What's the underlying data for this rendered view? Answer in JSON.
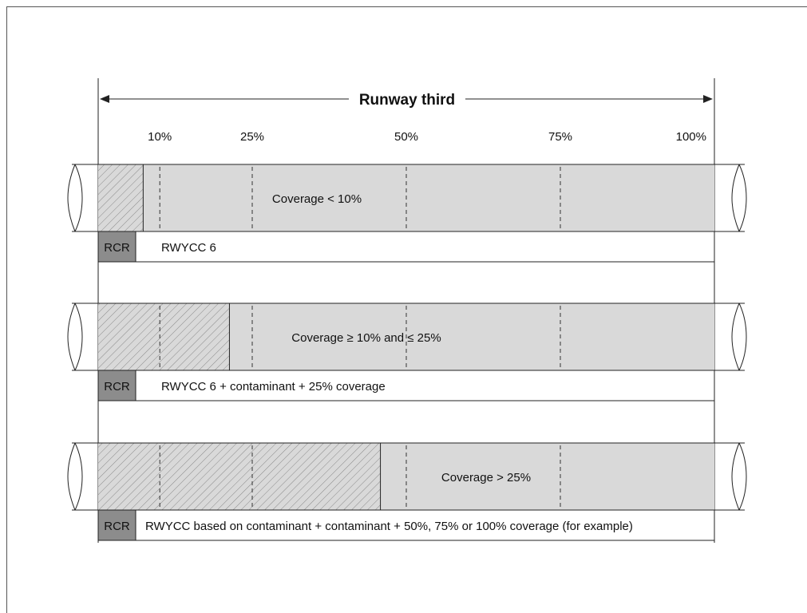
{
  "header": {
    "title": "Runway third"
  },
  "ticks": [
    {
      "label": "10%",
      "value": 10
    },
    {
      "label": "25%",
      "value": 25
    },
    {
      "label": "50%",
      "value": 50
    },
    {
      "label": "75%",
      "value": 75
    },
    {
      "label": "100%",
      "value": 100
    }
  ],
  "rows": [
    {
      "id": "row-1",
      "contaminated_percent": 7.3,
      "coverage_label": "Coverage < 10%",
      "rcr_label": "RCR",
      "rcr_text": "RWYCC 6"
    },
    {
      "id": "row-2",
      "contaminated_percent": 21.3,
      "coverage_label": "Coverage ≥ 10% and ≤ 25%",
      "rcr_label": "RCR",
      "rcr_text": "RWYCC 6 +  contaminant + 25% coverage"
    },
    {
      "id": "row-3",
      "contaminated_percent": 45.8,
      "coverage_label": "Coverage > 25%",
      "rcr_label": "RCR",
      "rcr_text": "RWYCC based on contaminant + contaminant + 50%, 75% or 100% coverage (for example)"
    }
  ],
  "colors": {
    "runway_fill": "#d9d9d9",
    "hatch_line": "#8a8a8a",
    "rcr_box": "#8c8c8c",
    "stroke": "#222222"
  }
}
